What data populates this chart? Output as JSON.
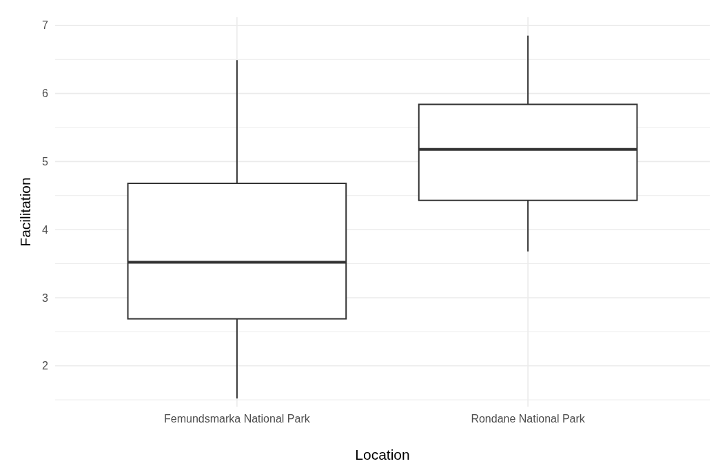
{
  "chart_data": {
    "type": "box",
    "xlabel": "Location",
    "ylabel": "Facilitation",
    "categories": [
      "Femundsmarka National Park",
      "Rondane National Park"
    ],
    "boxes": [
      {
        "low": 1.52,
        "q1": 2.69,
        "median": 3.52,
        "q3": 4.68,
        "high": 6.49
      },
      {
        "low": 3.68,
        "q1": 4.43,
        "median": 5.18,
        "q3": 5.84,
        "high": 6.85
      }
    ],
    "ylim": [
      1.4,
      7.12
    ],
    "yticks": [
      {
        "value": 1.5,
        "label": null
      },
      2,
      {
        "value": 2.5,
        "label": null
      },
      3,
      {
        "value": 3.5,
        "label": null
      },
      4,
      {
        "value": 4.5,
        "label": null
      },
      5,
      {
        "value": 5.5,
        "label": null
      },
      6,
      {
        "value": 6.5,
        "label": null
      },
      7
    ],
    "grid": true
  }
}
